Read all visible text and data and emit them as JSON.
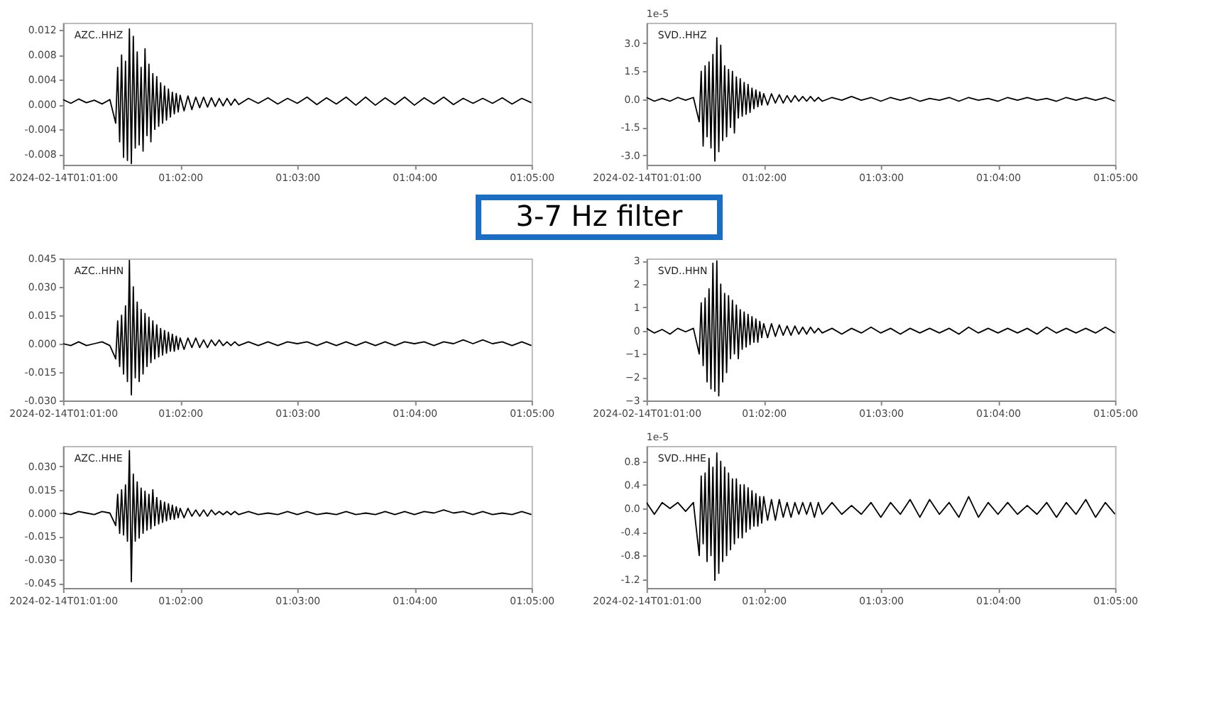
{
  "chart_data": [
    {
      "type": "line",
      "annotations": [
        "AZC..HHZ"
      ],
      "x": [
        "2024-02-14T01:01:00",
        "2024-02-14T01:01:04",
        "2024-02-14T01:01:08",
        "2024-02-14T01:01:12",
        "2024-02-14T01:01:16",
        "2024-02-14T01:01:20",
        "2024-02-14T01:01:24",
        "2024-02-14T01:01:27",
        "2024-02-14T01:01:28",
        "2024-02-14T01:01:29",
        "2024-02-14T01:01:30",
        "2024-02-14T01:01:31",
        "2024-02-14T01:01:32",
        "2024-02-14T01:01:33",
        "2024-02-14T01:01:34",
        "2024-02-14T01:01:35",
        "2024-02-14T01:01:36",
        "2024-02-14T01:01:37",
        "2024-02-14T01:01:38",
        "2024-02-14T01:01:39",
        "2024-02-14T01:01:40",
        "2024-02-14T01:01:41",
        "2024-02-14T01:01:42",
        "2024-02-14T01:01:43",
        "2024-02-14T01:01:44",
        "2024-02-14T01:01:45",
        "2024-02-14T01:01:46",
        "2024-02-14T01:01:47",
        "2024-02-14T01:01:48",
        "2024-02-14T01:01:49",
        "2024-02-14T01:01:50",
        "2024-02-14T01:01:51",
        "2024-02-14T01:01:52",
        "2024-02-14T01:01:53",
        "2024-02-14T01:01:54",
        "2024-02-14T01:01:55",
        "2024-02-14T01:01:56",
        "2024-02-14T01:01:57",
        "2024-02-14T01:01:58",
        "2024-02-14T01:01:59",
        "2024-02-14T01:02:00",
        "2024-02-14T01:02:02",
        "2024-02-14T01:02:04",
        "2024-02-14T01:02:06",
        "2024-02-14T01:02:08",
        "2024-02-14T01:02:10",
        "2024-02-14T01:02:12",
        "2024-02-14T01:02:14",
        "2024-02-14T01:02:16",
        "2024-02-14T01:02:18",
        "2024-02-14T01:02:20",
        "2024-02-14T01:02:22",
        "2024-02-14T01:02:24",
        "2024-02-14T01:02:26",
        "2024-02-14T01:02:28",
        "2024-02-14T01:02:30",
        "2024-02-14T01:02:35",
        "2024-02-14T01:02:40",
        "2024-02-14T01:02:45",
        "2024-02-14T01:02:50",
        "2024-02-14T01:02:55",
        "2024-02-14T01:03:00",
        "2024-02-14T01:03:05",
        "2024-02-14T01:03:10",
        "2024-02-14T01:03:15",
        "2024-02-14T01:03:20",
        "2024-02-14T01:03:25",
        "2024-02-14T01:03:30",
        "2024-02-14T01:03:35",
        "2024-02-14T01:03:40",
        "2024-02-14T01:03:45",
        "2024-02-14T01:03:50",
        "2024-02-14T01:03:55",
        "2024-02-14T01:04:00",
        "2024-02-14T01:04:05",
        "2024-02-14T01:04:10",
        "2024-02-14T01:04:15",
        "2024-02-14T01:04:20",
        "2024-02-14T01:04:25",
        "2024-02-14T01:04:30",
        "2024-02-14T01:04:35",
        "2024-02-14T01:04:40",
        "2024-02-14T01:04:45",
        "2024-02-14T01:04:50",
        "2024-02-14T01:04:55",
        "2024-02-14T01:05:00"
      ],
      "series": [
        {
          "color": "#000000",
          "values": [
            0.0008,
            0.0002,
            0.0009,
            0.0003,
            0.0007,
            0.0001,
            0.0008,
            -0.003,
            0.006,
            -0.006,
            0.008,
            -0.0085,
            0.007,
            -0.009,
            0.0122,
            -0.0095,
            0.011,
            -0.007,
            0.0085,
            -0.0065,
            0.006,
            -0.0075,
            0.009,
            -0.005,
            0.0065,
            -0.006,
            0.005,
            -0.004,
            0.0045,
            -0.0035,
            0.0035,
            -0.003,
            0.003,
            -0.0025,
            0.0025,
            -0.002,
            0.002,
            -0.0015,
            0.0018,
            -0.0012,
            0.0015,
            -0.001,
            0.0014,
            -0.0008,
            0.0012,
            -0.0005,
            0.0012,
            -0.0004,
            0.0011,
            -0.0003,
            0.001,
            -0.0002,
            0.001,
            -0.0001,
            0.0009,
            0.0,
            0.001,
            0.0002,
            0.0011,
            0.0001,
            0.001,
            0.0002,
            0.0012,
            0.0,
            0.0011,
            0.0001,
            0.0012,
            -0.0001,
            0.0012,
            -0.0001,
            0.0011,
            0.0,
            0.0012,
            -0.0001,
            0.0011,
            0.0001,
            0.0012,
            0.0,
            0.001,
            0.0002,
            0.001,
            0.0002,
            0.0011,
            0.0001,
            0.001,
            0.0003
          ]
        }
      ],
      "xlim": [
        "2024-02-14T01:01:00",
        "2024-02-14T01:05:00"
      ],
      "xticks": [
        {
          "value": "2024-02-14T01:01:00",
          "label": "2024-02-14T01:01:00"
        },
        {
          "value": "2024-02-14T01:02:00",
          "label": "01:02:00"
        },
        {
          "value": "2024-02-14T01:03:00",
          "label": "01:03:00"
        },
        {
          "value": "2024-02-14T01:04:00",
          "label": "01:04:00"
        },
        {
          "value": "2024-02-14T01:05:00",
          "label": "01:05:00"
        }
      ],
      "ylim": [
        -0.0097,
        0.0132
      ],
      "yticks": [
        {
          "value": -0.008,
          "label": "-0.008"
        },
        {
          "value": -0.004,
          "label": "-0.004"
        },
        {
          "value": 0,
          "label": "0.000"
        },
        {
          "value": 0.004,
          "label": "0.004"
        },
        {
          "value": 0.008,
          "label": "0.008"
        },
        {
          "value": 0.012,
          "label": "0.012"
        }
      ]
    },
    {
      "type": "line",
      "annotations": [
        "SVD..HHZ",
        "1e-5"
      ],
      "x": [
        "2024-02-14T01:01:00",
        "2024-02-14T01:01:04",
        "2024-02-14T01:01:08",
        "2024-02-14T01:01:12",
        "2024-02-14T01:01:16",
        "2024-02-14T01:01:20",
        "2024-02-14T01:01:24",
        "2024-02-14T01:01:27",
        "2024-02-14T01:01:28",
        "2024-02-14T01:01:29",
        "2024-02-14T01:01:30",
        "2024-02-14T01:01:31",
        "2024-02-14T01:01:32",
        "2024-02-14T01:01:33",
        "2024-02-14T01:01:34",
        "2024-02-14T01:01:35",
        "2024-02-14T01:01:36",
        "2024-02-14T01:01:37",
        "2024-02-14T01:01:38",
        "2024-02-14T01:01:39",
        "2024-02-14T01:01:40",
        "2024-02-14T01:01:41",
        "2024-02-14T01:01:42",
        "2024-02-14T01:01:43",
        "2024-02-14T01:01:44",
        "2024-02-14T01:01:45",
        "2024-02-14T01:01:46",
        "2024-02-14T01:01:47",
        "2024-02-14T01:01:48",
        "2024-02-14T01:01:49",
        "2024-02-14T01:01:50",
        "2024-02-14T01:01:51",
        "2024-02-14T01:01:52",
        "2024-02-14T01:01:53",
        "2024-02-14T01:01:54",
        "2024-02-14T01:01:55",
        "2024-02-14T01:01:56",
        "2024-02-14T01:01:57",
        "2024-02-14T01:01:58",
        "2024-02-14T01:01:59",
        "2024-02-14T01:02:00",
        "2024-02-14T01:02:02",
        "2024-02-14T01:02:04",
        "2024-02-14T01:02:06",
        "2024-02-14T01:02:08",
        "2024-02-14T01:02:10",
        "2024-02-14T01:02:12",
        "2024-02-14T01:02:14",
        "2024-02-14T01:02:16",
        "2024-02-14T01:02:18",
        "2024-02-14T01:02:20",
        "2024-02-14T01:02:22",
        "2024-02-14T01:02:24",
        "2024-02-14T01:02:26",
        "2024-02-14T01:02:28",
        "2024-02-14T01:02:30",
        "2024-02-14T01:02:35",
        "2024-02-14T01:02:40",
        "2024-02-14T01:02:45",
        "2024-02-14T01:02:50",
        "2024-02-14T01:02:55",
        "2024-02-14T01:03:00",
        "2024-02-14T01:03:05",
        "2024-02-14T01:03:10",
        "2024-02-14T01:03:15",
        "2024-02-14T01:03:20",
        "2024-02-14T01:03:25",
        "2024-02-14T01:03:30",
        "2024-02-14T01:03:35",
        "2024-02-14T01:03:40",
        "2024-02-14T01:03:45",
        "2024-02-14T01:03:50",
        "2024-02-14T01:03:55",
        "2024-02-14T01:04:00",
        "2024-02-14T01:04:05",
        "2024-02-14T01:04:10",
        "2024-02-14T01:04:15",
        "2024-02-14T01:04:20",
        "2024-02-14T01:04:25",
        "2024-02-14T01:04:30",
        "2024-02-14T01:04:35",
        "2024-02-14T01:04:40",
        "2024-02-14T01:04:45",
        "2024-02-14T01:04:50",
        "2024-02-14T01:04:55",
        "2024-02-14T01:05:00"
      ],
      "series": [
        {
          "color": "#000000",
          "values": [
            0.1,
            -0.1,
            0.05,
            -0.1,
            0.1,
            -0.05,
            0.1,
            -1.2,
            1.5,
            -2.5,
            1.8,
            -2.0,
            2.0,
            -2.6,
            2.4,
            -3.3,
            3.3,
            -2.8,
            2.9,
            -2.2,
            1.8,
            -2.0,
            1.6,
            -1.5,
            1.5,
            -1.8,
            1.2,
            -1.0,
            1.1,
            -0.9,
            0.9,
            -0.8,
            0.8,
            -0.7,
            0.6,
            -0.5,
            0.5,
            -0.4,
            0.4,
            -0.3,
            0.3,
            -0.3,
            0.3,
            -0.2,
            0.25,
            -0.2,
            0.2,
            -0.15,
            0.2,
            -0.1,
            0.15,
            -0.1,
            0.15,
            -0.1,
            0.1,
            -0.1,
            0.1,
            -0.05,
            0.15,
            -0.05,
            0.1,
            -0.1,
            0.1,
            -0.05,
            0.1,
            -0.1,
            0.05,
            -0.05,
            0.1,
            -0.1,
            0.1,
            -0.05,
            0.05,
            -0.1,
            0.1,
            -0.05,
            0.1,
            -0.05,
            0.05,
            -0.1,
            0.1,
            -0.05,
            0.1,
            -0.05,
            0.1,
            -0.1
          ]
        }
      ],
      "xlim": [
        "2024-02-14T01:01:00",
        "2024-02-14T01:05:00"
      ],
      "xticks": [
        {
          "value": "2024-02-14T01:01:00",
          "label": "2024-02-14T01:01:00"
        },
        {
          "value": "2024-02-14T01:02:00",
          "label": "01:02:00"
        },
        {
          "value": "2024-02-14T01:03:00",
          "label": "01:03:00"
        },
        {
          "value": "2024-02-14T01:04:00",
          "label": "01:04:00"
        },
        {
          "value": "2024-02-14T01:05:00",
          "label": "01:05:00"
        }
      ],
      "ylim": [
        -3.5,
        4.1
      ],
      "yticks": [
        {
          "value": -3,
          "label": "-3.0"
        },
        {
          "value": -1.5,
          "label": "-1.5"
        },
        {
          "value": 0,
          "label": "0.0"
        },
        {
          "value": 1.5,
          "label": "1.5"
        },
        {
          "value": 3,
          "label": "3.0"
        }
      ]
    },
    {
      "type": "other",
      "title": "3-7 Hz filter",
      "color": "#1a6fc4"
    },
    {
      "type": "line",
      "annotations": [
        "AZC..HHN"
      ],
      "x": [
        "2024-02-14T01:01:00",
        "2024-02-14T01:01:04",
        "2024-02-14T01:01:08",
        "2024-02-14T01:01:12",
        "2024-02-14T01:01:16",
        "2024-02-14T01:01:20",
        "2024-02-14T01:01:24",
        "2024-02-14T01:01:27",
        "2024-02-14T01:01:28",
        "2024-02-14T01:01:29",
        "2024-02-14T01:01:30",
        "2024-02-14T01:01:31",
        "2024-02-14T01:01:32",
        "2024-02-14T01:01:33",
        "2024-02-14T01:01:34",
        "2024-02-14T01:01:35",
        "2024-02-14T01:01:36",
        "2024-02-14T01:01:37",
        "2024-02-14T01:01:38",
        "2024-02-14T01:01:39",
        "2024-02-14T01:01:40",
        "2024-02-14T01:01:41",
        "2024-02-14T01:01:42",
        "2024-02-14T01:01:43",
        "2024-02-14T01:01:44",
        "2024-02-14T01:01:45",
        "2024-02-14T01:01:46",
        "2024-02-14T01:01:47",
        "2024-02-14T01:01:48",
        "2024-02-14T01:01:49",
        "2024-02-14T01:01:50",
        "2024-02-14T01:01:51",
        "2024-02-14T01:01:52",
        "2024-02-14T01:01:53",
        "2024-02-14T01:01:54",
        "2024-02-14T01:01:55",
        "2024-02-14T01:01:56",
        "2024-02-14T01:01:57",
        "2024-02-14T01:01:58",
        "2024-02-14T01:01:59",
        "2024-02-14T01:02:00",
        "2024-02-14T01:02:02",
        "2024-02-14T01:02:04",
        "2024-02-14T01:02:06",
        "2024-02-14T01:02:08",
        "2024-02-14T01:02:10",
        "2024-02-14T01:02:12",
        "2024-02-14T01:02:14",
        "2024-02-14T01:02:16",
        "2024-02-14T01:02:18",
        "2024-02-14T01:02:20",
        "2024-02-14T01:02:22",
        "2024-02-14T01:02:24",
        "2024-02-14T01:02:26",
        "2024-02-14T01:02:28",
        "2024-02-14T01:02:30",
        "2024-02-14T01:02:35",
        "2024-02-14T01:02:40",
        "2024-02-14T01:02:45",
        "2024-02-14T01:02:50",
        "2024-02-14T01:02:55",
        "2024-02-14T01:03:00",
        "2024-02-14T01:03:05",
        "2024-02-14T01:03:10",
        "2024-02-14T01:03:15",
        "2024-02-14T01:03:20",
        "2024-02-14T01:03:25",
        "2024-02-14T01:03:30",
        "2024-02-14T01:03:35",
        "2024-02-14T01:03:40",
        "2024-02-14T01:03:45",
        "2024-02-14T01:03:50",
        "2024-02-14T01:03:55",
        "2024-02-14T01:04:00",
        "2024-02-14T01:04:05",
        "2024-02-14T01:04:10",
        "2024-02-14T01:04:15",
        "2024-02-14T01:04:20",
        "2024-02-14T01:04:25",
        "2024-02-14T01:04:30",
        "2024-02-14T01:04:35",
        "2024-02-14T01:04:40",
        "2024-02-14T01:04:45",
        "2024-02-14T01:04:50",
        "2024-02-14T01:04:55",
        "2024-02-14T01:05:00"
      ],
      "series": [
        {
          "color": "#000000",
          "values": [
            0.0,
            -0.001,
            0.001,
            -0.001,
            0.0,
            0.001,
            -0.001,
            -0.008,
            0.012,
            -0.012,
            0.015,
            -0.016,
            0.02,
            -0.02,
            0.044,
            -0.027,
            0.03,
            -0.018,
            0.022,
            -0.02,
            0.018,
            -0.016,
            0.016,
            -0.012,
            0.014,
            -0.01,
            0.012,
            -0.008,
            0.01,
            -0.007,
            0.008,
            -0.006,
            0.007,
            -0.005,
            0.006,
            -0.004,
            0.005,
            -0.004,
            0.004,
            -0.003,
            0.003,
            -0.003,
            0.003,
            -0.002,
            0.003,
            -0.002,
            0.002,
            -0.002,
            0.002,
            -0.001,
            0.002,
            -0.001,
            0.001,
            -0.001,
            0.001,
            -0.001,
            0.001,
            -0.001,
            0.001,
            -0.001,
            0.001,
            0.0,
            0.001,
            -0.001,
            0.001,
            -0.001,
            0.001,
            -0.001,
            0.001,
            -0.001,
            0.001,
            -0.001,
            0.001,
            0.0,
            0.001,
            -0.001,
            0.001,
            0.0,
            0.002,
            0.0,
            0.002,
            0.0,
            0.001,
            -0.001,
            0.001,
            -0.001
          ]
        }
      ],
      "xlim": [
        "2024-02-14T01:01:00",
        "2024-02-14T01:05:00"
      ],
      "xticks": [
        {
          "value": "2024-02-14T01:01:00",
          "label": "2024-02-14T01:01:00"
        },
        {
          "value": "2024-02-14T01:02:00",
          "label": "01:02:00"
        },
        {
          "value": "2024-02-14T01:03:00",
          "label": "01:03:00"
        },
        {
          "value": "2024-02-14T01:04:00",
          "label": "01:04:00"
        },
        {
          "value": "2024-02-14T01:05:00",
          "label": "01:05:00"
        }
      ],
      "ylim": [
        -0.03,
        0.045
      ],
      "yticks": [
        {
          "value": -0.03,
          "label": "-0.030"
        },
        {
          "value": -0.015,
          "label": "-0.015"
        },
        {
          "value": 0,
          "label": "0.000"
        },
        {
          "value": 0.015,
          "label": "0.015"
        },
        {
          "value": 0.03,
          "label": "0.030"
        },
        {
          "value": 0.045,
          "label": "0.045"
        }
      ]
    },
    {
      "type": "line",
      "annotations": [
        "SVD..HHN"
      ],
      "x": [
        "2024-02-14T01:01:00",
        "2024-02-14T01:01:04",
        "2024-02-14T01:01:08",
        "2024-02-14T01:01:12",
        "2024-02-14T01:01:16",
        "2024-02-14T01:01:20",
        "2024-02-14T01:01:24",
        "2024-02-14T01:01:27",
        "2024-02-14T01:01:28",
        "2024-02-14T01:01:29",
        "2024-02-14T01:01:30",
        "2024-02-14T01:01:31",
        "2024-02-14T01:01:32",
        "2024-02-14T01:01:33",
        "2024-02-14T01:01:34",
        "2024-02-14T01:01:35",
        "2024-02-14T01:01:36",
        "2024-02-14T01:01:37",
        "2024-02-14T01:01:38",
        "2024-02-14T01:01:39",
        "2024-02-14T01:01:40",
        "2024-02-14T01:01:41",
        "2024-02-14T01:01:42",
        "2024-02-14T01:01:43",
        "2024-02-14T01:01:44",
        "2024-02-14T01:01:45",
        "2024-02-14T01:01:46",
        "2024-02-14T01:01:47",
        "2024-02-14T01:01:48",
        "2024-02-14T01:01:49",
        "2024-02-14T01:01:50",
        "2024-02-14T01:01:51",
        "2024-02-14T01:01:52",
        "2024-02-14T01:01:53",
        "2024-02-14T01:01:54",
        "2024-02-14T01:01:55",
        "2024-02-14T01:01:56",
        "2024-02-14T01:01:57",
        "2024-02-14T01:01:58",
        "2024-02-14T01:01:59",
        "2024-02-14T01:02:00",
        "2024-02-14T01:02:02",
        "2024-02-14T01:02:04",
        "2024-02-14T01:02:06",
        "2024-02-14T01:02:08",
        "2024-02-14T01:02:10",
        "2024-02-14T01:02:12",
        "2024-02-14T01:02:14",
        "2024-02-14T01:02:16",
        "2024-02-14T01:02:18",
        "2024-02-14T01:02:20",
        "2024-02-14T01:02:22",
        "2024-02-14T01:02:24",
        "2024-02-14T01:02:26",
        "2024-02-14T01:02:28",
        "2024-02-14T01:02:30",
        "2024-02-14T01:02:35",
        "2024-02-14T01:02:40",
        "2024-02-14T01:02:45",
        "2024-02-14T01:02:50",
        "2024-02-14T01:02:55",
        "2024-02-14T01:03:00",
        "2024-02-14T01:03:05",
        "2024-02-14T01:03:10",
        "2024-02-14T01:03:15",
        "2024-02-14T01:03:20",
        "2024-02-14T01:03:25",
        "2024-02-14T01:03:30",
        "2024-02-14T01:03:35",
        "2024-02-14T01:03:40",
        "2024-02-14T01:03:45",
        "2024-02-14T01:03:50",
        "2024-02-14T01:03:55",
        "2024-02-14T01:04:00",
        "2024-02-14T01:04:05",
        "2024-02-14T01:04:10",
        "2024-02-14T01:04:15",
        "2024-02-14T01:04:20",
        "2024-02-14T01:04:25",
        "2024-02-14T01:04:30",
        "2024-02-14T01:04:35",
        "2024-02-14T01:04:40",
        "2024-02-14T01:04:45",
        "2024-02-14T01:04:50",
        "2024-02-14T01:04:55",
        "2024-02-14T01:05:00"
      ],
      "series": [
        {
          "color": "#000000",
          "values": [
            0.1,
            -0.1,
            0.05,
            -0.15,
            0.1,
            -0.05,
            0.1,
            -1.0,
            1.2,
            -1.5,
            1.4,
            -2.2,
            1.8,
            -2.5,
            2.9,
            -2.6,
            3.0,
            -2.8,
            2.0,
            -2.2,
            1.6,
            -1.8,
            1.5,
            -1.2,
            1.3,
            -1.0,
            1.1,
            -1.2,
            0.9,
            -0.8,
            0.8,
            -0.7,
            0.7,
            -0.6,
            0.6,
            -0.5,
            0.5,
            -0.5,
            0.4,
            -0.3,
            0.3,
            -0.3,
            0.3,
            -0.25,
            0.25,
            -0.2,
            0.2,
            -0.2,
            0.2,
            -0.15,
            0.15,
            -0.15,
            0.15,
            -0.1,
            0.1,
            -0.1,
            0.1,
            -0.15,
            0.1,
            -0.1,
            0.15,
            -0.1,
            0.1,
            -0.15,
            0.1,
            -0.1,
            0.1,
            -0.1,
            0.1,
            -0.15,
            0.15,
            -0.1,
            0.1,
            -0.1,
            0.1,
            -0.1,
            0.1,
            -0.15,
            0.15,
            -0.1,
            0.1,
            -0.1,
            0.1,
            -0.1,
            0.15,
            -0.1
          ]
        }
      ],
      "xlim": [
        "2024-02-14T01:01:00",
        "2024-02-14T01:05:00"
      ],
      "xticks": [
        {
          "value": "2024-02-14T01:01:00",
          "label": "2024-02-14T01:01:00"
        },
        {
          "value": "2024-02-14T01:02:00",
          "label": "01:02:00"
        },
        {
          "value": "2024-02-14T01:03:00",
          "label": "01:03:00"
        },
        {
          "value": "2024-02-14T01:04:00",
          "label": "01:04:00"
        },
        {
          "value": "2024-02-14T01:05:00",
          "label": "01:05:00"
        }
      ],
      "ylim": [
        -3,
        3.1
      ],
      "yticks": [
        -3,
        -2,
        -1,
        0,
        1,
        2,
        3
      ]
    },
    {
      "type": "line",
      "annotations": [
        "AZC..HHE"
      ],
      "x": [
        "2024-02-14T01:01:00",
        "2024-02-14T01:01:04",
        "2024-02-14T01:01:08",
        "2024-02-14T01:01:12",
        "2024-02-14T01:01:16",
        "2024-02-14T01:01:20",
        "2024-02-14T01:01:24",
        "2024-02-14T01:01:27",
        "2024-02-14T01:01:28",
        "2024-02-14T01:01:29",
        "2024-02-14T01:01:30",
        "2024-02-14T01:01:31",
        "2024-02-14T01:01:32",
        "2024-02-14T01:01:33",
        "2024-02-14T01:01:34",
        "2024-02-14T01:01:35",
        "2024-02-14T01:01:36",
        "2024-02-14T01:01:37",
        "2024-02-14T01:01:38",
        "2024-02-14T01:01:39",
        "2024-02-14T01:01:40",
        "2024-02-14T01:01:41",
        "2024-02-14T01:01:42",
        "2024-02-14T01:01:43",
        "2024-02-14T01:01:44",
        "2024-02-14T01:01:45",
        "2024-02-14T01:01:46",
        "2024-02-14T01:01:47",
        "2024-02-14T01:01:48",
        "2024-02-14T01:01:49",
        "2024-02-14T01:01:50",
        "2024-02-14T01:01:51",
        "2024-02-14T01:01:52",
        "2024-02-14T01:01:53",
        "2024-02-14T01:01:54",
        "2024-02-14T01:01:55",
        "2024-02-14T01:01:56",
        "2024-02-14T01:01:57",
        "2024-02-14T01:01:58",
        "2024-02-14T01:01:59",
        "2024-02-14T01:02:00",
        "2024-02-14T01:02:02",
        "2024-02-14T01:02:04",
        "2024-02-14T01:02:06",
        "2024-02-14T01:02:08",
        "2024-02-14T01:02:10",
        "2024-02-14T01:02:12",
        "2024-02-14T01:02:14",
        "2024-02-14T01:02:16",
        "2024-02-14T01:02:18",
        "2024-02-14T01:02:20",
        "2024-02-14T01:02:22",
        "2024-02-14T01:02:24",
        "2024-02-14T01:02:26",
        "2024-02-14T01:02:28",
        "2024-02-14T01:02:30",
        "2024-02-14T01:02:35",
        "2024-02-14T01:02:40",
        "2024-02-14T01:02:45",
        "2024-02-14T01:02:50",
        "2024-02-14T01:02:55",
        "2024-02-14T01:03:00",
        "2024-02-14T01:03:05",
        "2024-02-14T01:03:10",
        "2024-02-14T01:03:15",
        "2024-02-14T01:03:20",
        "2024-02-14T01:03:25",
        "2024-02-14T01:03:30",
        "2024-02-14T01:03:35",
        "2024-02-14T01:03:40",
        "2024-02-14T01:03:45",
        "2024-02-14T01:03:50",
        "2024-02-14T01:03:55",
        "2024-02-14T01:04:00",
        "2024-02-14T01:04:05",
        "2024-02-14T01:04:10",
        "2024-02-14T01:04:15",
        "2024-02-14T01:04:20",
        "2024-02-14T01:04:25",
        "2024-02-14T01:04:30",
        "2024-02-14T01:04:35",
        "2024-02-14T01:04:40",
        "2024-02-14T01:04:45",
        "2024-02-14T01:04:50",
        "2024-02-14T01:04:55",
        "2024-02-14T01:05:00"
      ],
      "series": [
        {
          "color": "#000000",
          "values": [
            0.0,
            -0.001,
            0.001,
            0.0,
            -0.001,
            0.001,
            0.0,
            -0.008,
            0.012,
            -0.013,
            0.015,
            -0.014,
            0.018,
            -0.018,
            0.04,
            -0.044,
            0.025,
            -0.018,
            0.02,
            -0.016,
            0.016,
            -0.013,
            0.014,
            -0.011,
            0.012,
            -0.01,
            0.015,
            -0.008,
            0.01,
            -0.007,
            0.008,
            -0.006,
            0.007,
            -0.005,
            0.006,
            -0.004,
            0.005,
            -0.004,
            0.004,
            -0.003,
            0.003,
            -0.003,
            0.003,
            -0.002,
            0.002,
            -0.002,
            0.002,
            -0.002,
            0.002,
            -0.001,
            0.001,
            -0.001,
            0.001,
            -0.001,
            0.001,
            -0.001,
            0.001,
            -0.001,
            0.0,
            -0.001,
            0.001,
            -0.001,
            0.001,
            -0.001,
            0.0,
            -0.001,
            0.001,
            -0.001,
            0.0,
            -0.001,
            0.001,
            -0.001,
            0.001,
            -0.001,
            0.001,
            0.0,
            0.002,
            0.0,
            0.001,
            -0.001,
            0.001,
            -0.001,
            0.0,
            -0.001,
            0.001,
            -0.001
          ]
        }
      ],
      "xlim": [
        "2024-02-14T01:01:00",
        "2024-02-14T01:05:00"
      ],
      "xticks": [
        {
          "value": "2024-02-14T01:01:00",
          "label": "2024-02-14T01:01:00"
        },
        {
          "value": "2024-02-14T01:02:00",
          "label": "01:02:00"
        },
        {
          "value": "2024-02-14T01:03:00",
          "label": "01:03:00"
        },
        {
          "value": "2024-02-14T01:04:00",
          "label": "01:04:00"
        },
        {
          "value": "2024-02-14T01:05:00",
          "label": "01:05:00"
        }
      ],
      "ylim": [
        -0.048,
        0.043
      ],
      "yticks": [
        {
          "value": -0.045,
          "label": "-0.045"
        },
        {
          "value": -0.03,
          "label": "-0.030"
        },
        {
          "value": -0.015,
          "label": "-0.015"
        },
        {
          "value": 0,
          "label": "0.000"
        },
        {
          "value": 0.015,
          "label": "0.015"
        },
        {
          "value": 0.03,
          "label": "0.030"
        }
      ]
    },
    {
      "type": "line",
      "annotations": [
        "SVD..HHE",
        "1e-5"
      ],
      "x": [
        "2024-02-14T01:01:00",
        "2024-02-14T01:01:04",
        "2024-02-14T01:01:08",
        "2024-02-14T01:01:12",
        "2024-02-14T01:01:16",
        "2024-02-14T01:01:20",
        "2024-02-14T01:01:24",
        "2024-02-14T01:01:27",
        "2024-02-14T01:01:28",
        "2024-02-14T01:01:29",
        "2024-02-14T01:01:30",
        "2024-02-14T01:01:31",
        "2024-02-14T01:01:32",
        "2024-02-14T01:01:33",
        "2024-02-14T01:01:34",
        "2024-02-14T01:01:35",
        "2024-02-14T01:01:36",
        "2024-02-14T01:01:37",
        "2024-02-14T01:01:38",
        "2024-02-14T01:01:39",
        "2024-02-14T01:01:40",
        "2024-02-14T01:01:41",
        "2024-02-14T01:01:42",
        "2024-02-14T01:01:43",
        "2024-02-14T01:01:44",
        "2024-02-14T01:01:45",
        "2024-02-14T01:01:46",
        "2024-02-14T01:01:47",
        "2024-02-14T01:01:48",
        "2024-02-14T01:01:49",
        "2024-02-14T01:01:50",
        "2024-02-14T01:01:51",
        "2024-02-14T01:01:52",
        "2024-02-14T01:01:53",
        "2024-02-14T01:01:54",
        "2024-02-14T01:01:55",
        "2024-02-14T01:01:56",
        "2024-02-14T01:01:57",
        "2024-02-14T01:01:58",
        "2024-02-14T01:01:59",
        "2024-02-14T01:02:00",
        "2024-02-14T01:02:02",
        "2024-02-14T01:02:04",
        "2024-02-14T01:02:06",
        "2024-02-14T01:02:08",
        "2024-02-14T01:02:10",
        "2024-02-14T01:02:12",
        "2024-02-14T01:02:14",
        "2024-02-14T01:02:16",
        "2024-02-14T01:02:18",
        "2024-02-14T01:02:20",
        "2024-02-14T01:02:22",
        "2024-02-14T01:02:24",
        "2024-02-14T01:02:26",
        "2024-02-14T01:02:28",
        "2024-02-14T01:02:30",
        "2024-02-14T01:02:35",
        "2024-02-14T01:02:40",
        "2024-02-14T01:02:45",
        "2024-02-14T01:02:50",
        "2024-02-14T01:02:55",
        "2024-02-14T01:03:00",
        "2024-02-14T01:03:05",
        "2024-02-14T01:03:10",
        "2024-02-14T01:03:15",
        "2024-02-14T01:03:20",
        "2024-02-14T01:03:25",
        "2024-02-14T01:03:30",
        "2024-02-14T01:03:35",
        "2024-02-14T01:03:40",
        "2024-02-14T01:03:45",
        "2024-02-14T01:03:50",
        "2024-02-14T01:03:55",
        "2024-02-14T01:04:00",
        "2024-02-14T01:04:05",
        "2024-02-14T01:04:10",
        "2024-02-14T01:04:15",
        "2024-02-14T01:04:20",
        "2024-02-14T01:04:25",
        "2024-02-14T01:04:30",
        "2024-02-14T01:04:35",
        "2024-02-14T01:04:40",
        "2024-02-14T01:04:45",
        "2024-02-14T01:04:50",
        "2024-02-14T01:04:55",
        "2024-02-14T01:05:00"
      ],
      "series": [
        {
          "color": "#000000",
          "values": [
            0.1,
            -0.1,
            0.1,
            0.0,
            0.1,
            -0.05,
            0.1,
            -0.8,
            0.55,
            -0.6,
            0.6,
            -0.9,
            0.85,
            -0.8,
            0.7,
            -1.22,
            0.94,
            -1.1,
            0.8,
            -0.9,
            0.7,
            -0.8,
            0.6,
            -0.7,
            0.5,
            -0.6,
            0.5,
            -0.5,
            0.4,
            -0.5,
            0.4,
            -0.4,
            0.35,
            -0.35,
            0.3,
            -0.3,
            0.25,
            -0.3,
            0.2,
            -0.25,
            0.2,
            -0.2,
            0.15,
            -0.2,
            0.15,
            -0.15,
            0.1,
            -0.15,
            0.1,
            -0.1,
            0.1,
            -0.1,
            0.1,
            -0.15,
            0.1,
            -0.1,
            0.1,
            -0.1,
            0.05,
            -0.1,
            0.1,
            -0.15,
            0.1,
            -0.1,
            0.15,
            -0.15,
            0.15,
            -0.1,
            0.1,
            -0.15,
            0.2,
            -0.15,
            0.1,
            -0.1,
            0.1,
            -0.1,
            0.05,
            -0.1,
            0.1,
            -0.15,
            0.1,
            -0.1,
            0.15,
            -0.15,
            0.1,
            -0.1
          ]
        }
      ],
      "xlim": [
        "2024-02-14T01:01:00",
        "2024-02-14T01:05:00"
      ],
      "xticks": [
        {
          "value": "2024-02-14T01:01:00",
          "label": "2024-02-14T01:01:00"
        },
        {
          "value": "2024-02-14T01:02:00",
          "label": "01:02:00"
        },
        {
          "value": "2024-02-14T01:03:00",
          "label": "01:03:00"
        },
        {
          "value": "2024-02-14T01:04:00",
          "label": "01:04:00"
        },
        {
          "value": "2024-02-14T01:05:00",
          "label": "01:05:00"
        }
      ],
      "ylim": [
        -1.35,
        1.06
      ],
      "yticks": [
        {
          "value": -1.2,
          "label": "-1.2"
        },
        {
          "value": -0.8,
          "label": "-0.8"
        },
        {
          "value": -0.4,
          "label": "-0.4"
        },
        {
          "value": 0,
          "label": "0.0"
        },
        {
          "value": 0.4,
          "label": "0.4"
        },
        {
          "value": 0.8,
          "label": "0.8"
        }
      ]
    }
  ]
}
